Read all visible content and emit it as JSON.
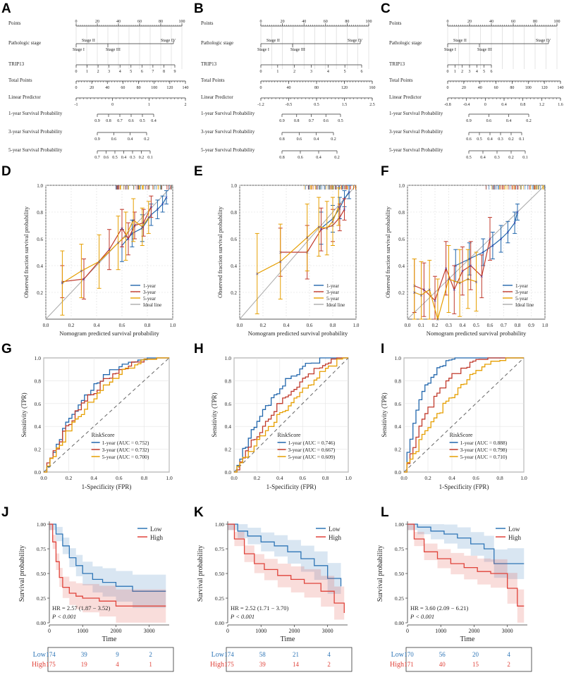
{
  "panel_labels": [
    "A",
    "B",
    "C",
    "D",
    "E",
    "F",
    "G",
    "H",
    "I",
    "J",
    "K",
    "L"
  ],
  "colors": {
    "year1": "#2166ac",
    "year3": "#c0392b",
    "year5": "#e69f00",
    "low": "#2e75b6",
    "high": "#e0433a",
    "ideal": "#aaaaaa",
    "cross": "#2222aa"
  },
  "nomograms": [
    {
      "rows": [
        "Points",
        "Pathologic stage",
        "TRIP13",
        "Total Points",
        "Linear Predictor",
        "1-year Survival Probability",
        "3-year Survival Probability",
        "5-year Survival Probability"
      ],
      "points_ticks": [
        "0",
        "20",
        "40",
        "60",
        "80",
        "100"
      ],
      "stage_labels": [
        "Stage II",
        "Stage IV",
        "Stage I",
        "Stage III"
      ],
      "trip13_ticks": [
        "0",
        "1",
        "2",
        "3",
        "4",
        "5",
        "6",
        "7",
        "8",
        "9"
      ],
      "total_ticks": [
        "0",
        "20",
        "40",
        "60",
        "80",
        "100",
        "120",
        "140"
      ],
      "lp_ticks": [
        "-1",
        "0",
        "1",
        "2"
      ],
      "surv1": [
        "0.9",
        "0.8",
        "0.7",
        "0.6",
        "0.5",
        "0.4"
      ],
      "surv3": [
        "0.9",
        "0.6",
        "0.4",
        "0.2"
      ],
      "surv5": [
        "0.7",
        "0.6",
        "0.5",
        "0.4",
        "0.3",
        "0.2",
        "0.1"
      ]
    },
    {
      "rows": [
        "Points",
        "Pathologic stage",
        "TRIP13",
        "Total Points",
        "Linear Predictor",
        "1-year Survival Probability",
        "3-year Survival Probability",
        "5-year Survival Probability"
      ],
      "points_ticks": [
        "0",
        "20",
        "40",
        "60",
        "80",
        "100"
      ],
      "stage_labels": [
        "Stage II",
        "Stage IV",
        "Stage I",
        "Stage III"
      ],
      "trip13_ticks": [
        "0",
        "1",
        "2",
        "3",
        "4",
        "5",
        "6"
      ],
      "total_ticks": [
        "0",
        "40",
        "80",
        "120",
        "160"
      ],
      "lp_ticks": [
        "-1.2",
        "-0.5",
        "0.5",
        "1.5",
        "2.5"
      ],
      "surv1": [
        "0.9",
        "0.8",
        "0.7",
        "0.6",
        "0.5"
      ],
      "surv3": [
        "0.8",
        "0.6",
        "0.4",
        "0.2"
      ],
      "surv5": [
        "0.8",
        "0.6",
        "0.4",
        "0.2"
      ]
    },
    {
      "rows": [
        "Points",
        "Pathologic stage",
        "TRIP13",
        "Total Points",
        "Linear Predictor",
        "1-year Survival Probability",
        "3-year Survival Probability",
        "5-year Survival Probability"
      ],
      "points_ticks": [
        "0",
        "20",
        "40",
        "60",
        "80",
        "100"
      ],
      "stage_labels": [
        "Stage II",
        "Stage IV",
        "Stage I",
        "Stage III"
      ],
      "trip13_ticks": [
        "0",
        "1",
        "2",
        "3",
        "4",
        "5",
        "6"
      ],
      "total_ticks": [
        "0",
        "20",
        "40",
        "60",
        "80",
        "100",
        "120",
        "140"
      ],
      "lp_ticks": [
        "-0.8",
        "-0.4",
        "0",
        "0.4",
        "0.8",
        "1.2",
        "1.6"
      ],
      "surv1": [
        "0.9",
        "0.6",
        "0.4",
        "0.2"
      ],
      "surv3": [
        "0.6",
        "0.5",
        "0.4",
        "0.3",
        "0.2",
        "0.1"
      ],
      "surv5": [
        "0.5",
        "0.4",
        "0.3",
        "0.2",
        "0.1"
      ]
    }
  ],
  "chart_data": [
    {
      "type": "line",
      "panel": "D",
      "xlabel": "Nomogram predicted survival probability",
      "ylabel": "Observed fraction survival probability",
      "xlim": [
        0,
        1
      ],
      "ylim": [
        0,
        1
      ],
      "ticks": [
        "0.0",
        "0.2",
        "0.4",
        "0.6",
        "0.8",
        "1.0"
      ],
      "legend": [
        "1-year",
        "3-year",
        "5-year",
        "Ideal line"
      ],
      "series": [
        {
          "name": "1-year",
          "x": [
            0.6,
            0.68,
            0.76,
            0.83,
            0.88,
            0.92,
            0.95
          ],
          "y": [
            0.55,
            0.64,
            0.68,
            0.78,
            0.82,
            0.86,
            0.91
          ],
          "err": [
            0.12,
            0.1,
            0.1,
            0.08,
            0.07,
            0.06,
            0.05
          ]
        },
        {
          "name": "3-year",
          "x": [
            0.13,
            0.3,
            0.5,
            0.6,
            0.65,
            0.7,
            0.77,
            0.83
          ],
          "y": [
            0.28,
            0.3,
            0.52,
            0.68,
            0.6,
            0.7,
            0.72,
            0.84
          ],
          "err": [
            0.12,
            0.15,
            0.15,
            0.14,
            0.12,
            0.1,
            0.1,
            0.08
          ]
        },
        {
          "name": "5-year",
          "x": [
            0.13,
            0.28,
            0.42,
            0.57,
            0.63,
            0.69,
            0.76,
            0.81
          ],
          "y": [
            0.27,
            0.36,
            0.43,
            0.57,
            0.62,
            0.74,
            0.69,
            0.76
          ],
          "err": [
            0.24,
            0.2,
            0.2,
            0.2,
            0.18,
            0.16,
            0.14,
            0.12
          ]
        }
      ]
    },
    {
      "type": "line",
      "panel": "E",
      "xlabel": "Nomogram predicted survival probability",
      "ylabel": "Observed fraction survival probability",
      "xlim": [
        0,
        1
      ],
      "ylim": [
        0,
        1
      ],
      "ticks": [
        "0.0",
        "0.2",
        "0.4",
        "0.6",
        "0.8",
        "1.0"
      ],
      "legend": [
        "1-year",
        "3-year",
        "5-year",
        "Ideal line"
      ],
      "series": [
        {
          "name": "1-year",
          "x": [
            0.7,
            0.8,
            0.86,
            0.9,
            0.94
          ],
          "y": [
            0.68,
            0.75,
            0.83,
            0.9,
            0.95
          ],
          "err": [
            0.12,
            0.1,
            0.08,
            0.06,
            0.05
          ]
        },
        {
          "name": "3-year",
          "x": [
            0.35,
            0.58,
            0.7,
            0.8,
            0.86,
            0.9
          ],
          "y": [
            0.5,
            0.5,
            0.67,
            0.7,
            0.76,
            0.82
          ],
          "err": [
            0.18,
            0.2,
            0.16,
            0.12,
            0.1,
            0.08
          ]
        },
        {
          "name": "5-year",
          "x": [
            0.15,
            0.35,
            0.58,
            0.68,
            0.75,
            0.8,
            0.85
          ],
          "y": [
            0.34,
            0.43,
            0.61,
            0.69,
            0.68,
            0.73,
            0.84
          ],
          "err": [
            0.3,
            0.28,
            0.25,
            0.22,
            0.2,
            0.18,
            0.14
          ]
        }
      ]
    },
    {
      "type": "line",
      "panel": "F",
      "xlabel": "Nomogram predicted survival probability",
      "ylabel": "Observed fraction survival probability",
      "xlim": [
        0,
        1
      ],
      "ylim": [
        0,
        1
      ],
      "ticks": [
        "0.0",
        "0.1",
        "0.2",
        "0.3",
        "0.4",
        "0.5",
        "0.6",
        "0.7",
        "0.8",
        "0.9",
        "1.0"
      ],
      "legend": [
        "1-year",
        "3-year",
        "5-year",
        "Ideal line"
      ],
      "series": [
        {
          "name": "1-year",
          "x": [
            0.35,
            0.45,
            0.55,
            0.62,
            0.68,
            0.73,
            0.78,
            0.8
          ],
          "y": [
            0.4,
            0.45,
            0.5,
            0.55,
            0.6,
            0.65,
            0.72,
            0.8
          ],
          "err": [
            0.12,
            0.12,
            0.1,
            0.1,
            0.1,
            0.08,
            0.08,
            0.06
          ]
        },
        {
          "name": "3-year",
          "x": [
            0.05,
            0.12,
            0.2,
            0.28,
            0.34,
            0.4,
            0.46,
            0.54,
            0.6
          ],
          "y": [
            0.25,
            0.22,
            0.14,
            0.38,
            0.22,
            0.36,
            0.4,
            0.32,
            0.6
          ],
          "err": [
            0.2,
            0.2,
            0.18,
            0.2,
            0.18,
            0.18,
            0.18,
            0.16,
            0.16
          ]
        },
        {
          "name": "5-year",
          "x": [
            0.05,
            0.1,
            0.16,
            0.22,
            0.3,
            0.38,
            0.44,
            0.5
          ],
          "y": [
            0.2,
            0.18,
            0.22,
            0.0,
            0.3,
            0.27,
            0.3,
            0.28
          ],
          "err": [
            0.25,
            0.25,
            0.22,
            0.3,
            0.25,
            0.25,
            0.22,
            0.22
          ]
        }
      ]
    },
    {
      "type": "line",
      "panel": "G",
      "title": "RiskScore",
      "xlabel": "1-Specificity (FPR)",
      "ylabel": "Sensitivity (TPR)",
      "xlim": [
        0,
        1
      ],
      "ylim": [
        0,
        1
      ],
      "ticks": [
        "0.0",
        "0.2",
        "0.4",
        "0.6",
        "0.8",
        "1.0"
      ],
      "legend": [
        "1-year (AUC = 0.752)",
        "3-year (AUC = 0.732)",
        "5-year (AUC = 0.700)"
      ],
      "auc": [
        0.752,
        0.732,
        0.7
      ]
    },
    {
      "type": "line",
      "panel": "H",
      "title": "RiskScore",
      "xlabel": "1-Specificity (FPR)",
      "ylabel": "Sensitivity (TPR)",
      "xlim": [
        0,
        1
      ],
      "ylim": [
        0,
        1
      ],
      "ticks": [
        "0.0",
        "0.2",
        "0.4",
        "0.6",
        "0.8",
        "1.0"
      ],
      "legend": [
        "1-year (AUC = 0.746)",
        "3-year (AUC = 0.667)",
        "5-year (AUC = 0.609)"
      ],
      "auc": [
        0.746,
        0.667,
        0.609
      ]
    },
    {
      "type": "line",
      "panel": "I",
      "title": "RiskScore",
      "xlabel": "1-Specificity (FPR)",
      "ylabel": "Sensitivity (TPR)",
      "xlim": [
        0,
        1
      ],
      "ylim": [
        0,
        1
      ],
      "ticks": [
        "0.0",
        "0.2",
        "0.4",
        "0.6",
        "0.8",
        "1.0"
      ],
      "legend": [
        "1-year (AUC = 0.888)",
        "3-year (AUC = 0.798)",
        "5-year (AUC = 0.710)"
      ],
      "auc": [
        0.888,
        0.798,
        0.71
      ]
    },
    {
      "type": "line",
      "panel": "J",
      "xlabel": "Time",
      "ylabel": "Survival probability",
      "xlim": [
        0,
        3600
      ],
      "ylim": [
        0,
        1
      ],
      "xticks": [
        "0",
        "1000",
        "2000",
        "3000"
      ],
      "yticks": [
        "0.00",
        "0.25",
        "0.50",
        "0.75",
        "1.00"
      ],
      "legend": [
        "Low",
        "High"
      ],
      "hr_text": "HR = 2.57 (1.87 − 3.52)",
      "p_text": "P < 0.001",
      "risk_table": {
        "times": [
          0,
          1000,
          2000,
          3000
        ],
        "Low": [
          174,
          39,
          9,
          2
        ],
        "High": [
          175,
          19,
          4,
          1
        ]
      },
      "low": {
        "t": [
          0,
          200,
          400,
          600,
          800,
          1000,
          1300,
          1600,
          2000,
          2500,
          3500
        ],
        "s": [
          1,
          0.9,
          0.78,
          0.66,
          0.58,
          0.5,
          0.44,
          0.41,
          0.37,
          0.32,
          0.32
        ]
      },
      "high": {
        "t": [
          0,
          100,
          200,
          300,
          400,
          600,
          800,
          1000,
          1500,
          2000,
          3500
        ],
        "s": [
          1,
          0.82,
          0.62,
          0.46,
          0.36,
          0.3,
          0.27,
          0.25,
          0.22,
          0.17,
          0.17
        ]
      }
    },
    {
      "type": "line",
      "panel": "K",
      "xlabel": "Time",
      "ylabel": "Survival probability",
      "xlim": [
        0,
        3600
      ],
      "ylim": [
        0,
        1
      ],
      "xticks": [
        "0",
        "1000",
        "2000",
        "3000"
      ],
      "yticks": [
        "0.00",
        "0.25",
        "0.50",
        "0.75",
        "1.00"
      ],
      "legend": [
        "Low",
        "High"
      ],
      "hr_text": "HR = 2.52 (1.71 − 3.70)",
      "p_text": "P < 0.001",
      "risk_table": {
        "times": [
          0,
          1000,
          2000,
          3000
        ],
        "Low": [
          174,
          58,
          21,
          4
        ],
        "High": [
          175,
          39,
          14,
          2
        ]
      },
      "low": {
        "t": [
          0,
          300,
          600,
          1000,
          1400,
          1800,
          2200,
          2600,
          3000,
          3400
        ],
        "s": [
          1,
          0.93,
          0.88,
          0.82,
          0.78,
          0.72,
          0.65,
          0.58,
          0.45,
          0.37
        ]
      },
      "high": {
        "t": [
          0,
          200,
          500,
          800,
          1100,
          1500,
          1900,
          2300,
          2800,
          3200,
          3500
        ],
        "s": [
          1,
          0.85,
          0.7,
          0.6,
          0.54,
          0.48,
          0.44,
          0.4,
          0.32,
          0.2,
          0.1
        ]
      }
    },
    {
      "type": "line",
      "panel": "L",
      "xlabel": "Time",
      "ylabel": "Survival probability",
      "xlim": [
        0,
        3600
      ],
      "ylim": [
        0,
        1
      ],
      "xticks": [
        "0",
        "1000",
        "2000",
        "3000"
      ],
      "yticks": [
        "0.00",
        "0.25",
        "0.50",
        "0.75",
        "1.00"
      ],
      "legend": [
        "Low",
        "High"
      ],
      "hr_text": "HR = 3.60 (2.09 − 6.21)",
      "p_text": "P < 0.001",
      "risk_table": {
        "times": [
          0,
          1000,
          2000,
          3000
        ],
        "Low": [
          170,
          56,
          20,
          4
        ],
        "High": [
          171,
          40,
          15,
          2
        ]
      },
      "low": {
        "t": [
          0,
          300,
          700,
          1100,
          1500,
          1900,
          2300,
          2600,
          3000,
          3500
        ],
        "s": [
          1,
          0.97,
          0.93,
          0.9,
          0.86,
          0.8,
          0.75,
          0.6,
          0.6,
          0.6
        ]
      },
      "high": {
        "t": [
          0,
          200,
          500,
          900,
          1300,
          1700,
          2100,
          2500,
          3000,
          3300,
          3500
        ],
        "s": [
          1,
          0.85,
          0.72,
          0.65,
          0.6,
          0.56,
          0.52,
          0.5,
          0.35,
          0.17,
          0.17
        ]
      }
    }
  ]
}
